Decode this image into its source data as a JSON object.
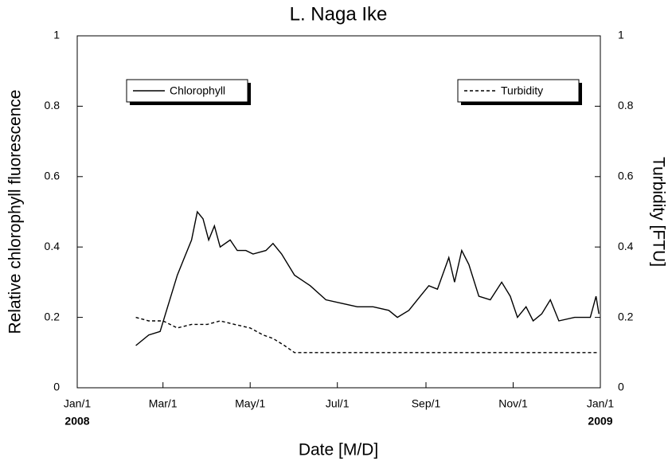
{
  "chart_data": {
    "type": "line",
    "title": "L. Naga Ike",
    "x_label": "Date [M/D]",
    "y_label": "Relative chlorophyll fluorescence",
    "y2_label": "Turbidity [FTU]",
    "xlim": [
      "2008-01-01",
      "2009-01-01"
    ],
    "xticks": [
      {
        "value": "2008-01-01",
        "label": "Jan/1"
      },
      {
        "value": "2008-03-01",
        "label": "Mar/1"
      },
      {
        "value": "2008-05-01",
        "label": "May/1"
      },
      {
        "value": "2008-07-01",
        "label": "Jul/1"
      },
      {
        "value": "2008-09-01",
        "label": "Sep/1"
      },
      {
        "value": "2008-11-01",
        "label": "Nov/1"
      },
      {
        "value": "2009-01-01",
        "label": "Jan/1"
      }
    ],
    "x_year_labels": [
      {
        "value": "2008-01-01",
        "label": "2008"
      },
      {
        "value": "2009-01-01",
        "label": "2009"
      }
    ],
    "ylim": [
      0,
      1
    ],
    "yticks": [
      0,
      0.2,
      0.4,
      0.6,
      0.8,
      1
    ],
    "y2lim": [
      0,
      1
    ],
    "y2ticks": [
      0,
      0.2,
      0.4,
      0.6,
      0.8,
      1
    ],
    "series": [
      {
        "name": "Chlorophyll",
        "color": "#000000",
        "dash": "solid",
        "legend": "top-left",
        "x": [
          "2008-02-11",
          "2008-02-20",
          "2008-02-28",
          "2008-03-05",
          "2008-03-11",
          "2008-03-16",
          "2008-03-21",
          "2008-03-25",
          "2008-03-29",
          "2008-04-02",
          "2008-04-06",
          "2008-04-10",
          "2008-04-17",
          "2008-04-22",
          "2008-04-28",
          "2008-05-03",
          "2008-05-12",
          "2008-05-17",
          "2008-05-23",
          "2008-06-01",
          "2008-06-12",
          "2008-06-23",
          "2008-07-04",
          "2008-07-15",
          "2008-07-26",
          "2008-08-06",
          "2008-08-12",
          "2008-08-20",
          "2008-08-28",
          "2008-09-03",
          "2008-09-09",
          "2008-09-17",
          "2008-09-21",
          "2008-09-26",
          "2008-10-01",
          "2008-10-08",
          "2008-10-16",
          "2008-10-24",
          "2008-10-30",
          "2008-11-04",
          "2008-11-10",
          "2008-11-15",
          "2008-11-21",
          "2008-11-27",
          "2008-12-03",
          "2008-12-14",
          "2008-12-25",
          "2008-12-29",
          "2008-12-31"
        ],
        "values": [
          0.12,
          0.15,
          0.16,
          0.24,
          0.32,
          0.37,
          0.42,
          0.5,
          0.48,
          0.42,
          0.46,
          0.4,
          0.42,
          0.39,
          0.39,
          0.38,
          0.39,
          0.41,
          0.38,
          0.32,
          0.29,
          0.25,
          0.24,
          0.23,
          0.23,
          0.22,
          0.2,
          0.22,
          0.26,
          0.29,
          0.28,
          0.37,
          0.3,
          0.39,
          0.35,
          0.26,
          0.25,
          0.3,
          0.26,
          0.2,
          0.23,
          0.19,
          0.21,
          0.25,
          0.19,
          0.2,
          0.2,
          0.26,
          0.21
        ]
      },
      {
        "name": "Turbidity",
        "color": "#000000",
        "dash": "dashed",
        "axis": "y2",
        "legend": "top-right",
        "x": [
          "2008-02-11",
          "2008-02-20",
          "2008-03-01",
          "2008-03-11",
          "2008-03-21",
          "2008-04-01",
          "2008-04-10",
          "2008-04-20",
          "2008-05-01",
          "2008-05-10",
          "2008-05-17",
          "2008-05-25",
          "2008-06-01",
          "2008-07-01",
          "2008-08-01",
          "2008-09-01",
          "2008-10-01",
          "2008-11-01",
          "2008-12-01",
          "2008-12-31"
        ],
        "values": [
          0.2,
          0.19,
          0.19,
          0.17,
          0.18,
          0.18,
          0.19,
          0.18,
          0.17,
          0.15,
          0.14,
          0.12,
          0.1,
          0.1,
          0.1,
          0.1,
          0.1,
          0.1,
          0.1,
          0.1
        ]
      }
    ]
  }
}
